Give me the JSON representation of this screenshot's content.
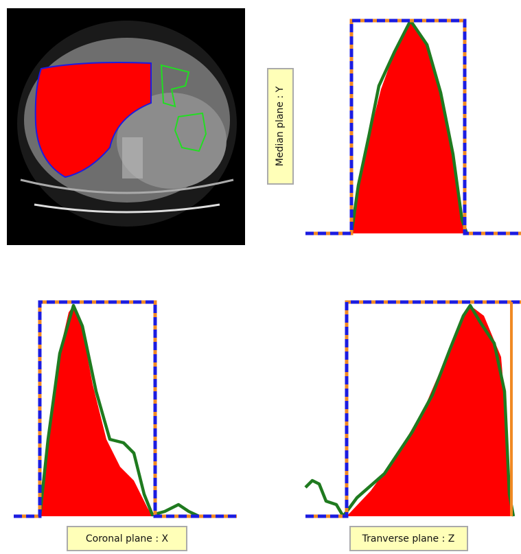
{
  "plots": {
    "median": {
      "label": "Median plane : Y"
    },
    "coronal": {
      "label": "Coronal plane : X"
    },
    "transverse": {
      "label": "Tranverse plane : Z"
    }
  }
}
